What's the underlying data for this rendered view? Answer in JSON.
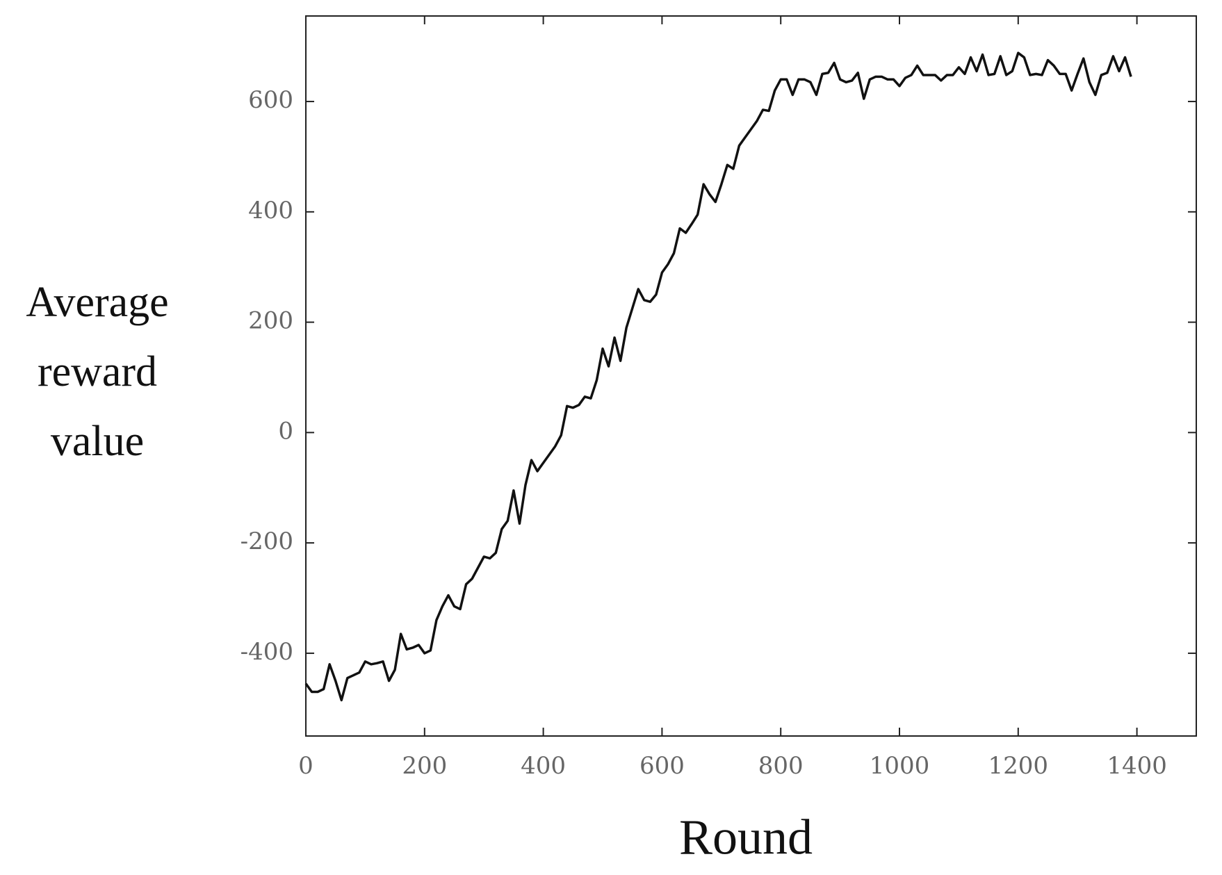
{
  "chart_data": {
    "type": "line",
    "xlabel": "Round",
    "ylabel": "Average reward value",
    "xlim": [
      0,
      1500
    ],
    "xticks": [
      0,
      200,
      400,
      600,
      800,
      1000,
      1200,
      1400
    ],
    "ylim": [
      -550,
      755
    ],
    "yticks": [
      -400,
      -200,
      0,
      200,
      400,
      600
    ],
    "x": [
      0,
      10,
      20,
      30,
      40,
      50,
      60,
      70,
      80,
      90,
      100,
      110,
      120,
      130,
      140,
      150,
      160,
      170,
      180,
      190,
      200,
      210,
      220,
      230,
      240,
      250,
      260,
      270,
      280,
      290,
      300,
      310,
      320,
      330,
      340,
      350,
      360,
      370,
      380,
      390,
      400,
      410,
      420,
      430,
      440,
      450,
      460,
      470,
      480,
      490,
      500,
      510,
      520,
      530,
      540,
      550,
      560,
      570,
      580,
      590,
      600,
      610,
      620,
      630,
      640,
      650,
      660,
      670,
      680,
      690,
      700,
      710,
      720,
      730,
      740,
      750,
      760,
      770,
      780,
      790,
      800,
      810,
      820,
      830,
      840,
      850,
      860,
      870,
      880,
      890,
      900,
      910,
      920,
      930,
      940,
      950,
      960,
      970,
      980,
      990,
      1000,
      1010,
      1020,
      1030,
      1040,
      1050,
      1060,
      1070,
      1080,
      1090,
      1100,
      1110,
      1120,
      1130,
      1140,
      1150,
      1160,
      1170,
      1180,
      1190,
      1200,
      1210,
      1220,
      1230,
      1240,
      1250,
      1260,
      1270,
      1280,
      1290,
      1300,
      1310,
      1320,
      1330,
      1340,
      1350,
      1360,
      1370,
      1380,
      1390
    ],
    "series": [
      {
        "color": "#111111",
        "values": [
          -455,
          -470,
          -470,
          -465,
          -420,
          -450,
          -485,
          -445,
          -440,
          -435,
          -415,
          -420,
          -418,
          -415,
          -450,
          -430,
          -365,
          -393,
          -390,
          -385,
          -400,
          -395,
          -340,
          -315,
          -295,
          -315,
          -320,
          -275,
          -265,
          -245,
          -225,
          -228,
          -218,
          -175,
          -160,
          -105,
          -165,
          -95,
          -50,
          -70,
          -55,
          -40,
          -25,
          -5,
          48,
          45,
          50,
          65,
          62,
          95,
          152,
          120,
          172,
          130,
          190,
          225,
          260,
          240,
          237,
          250,
          290,
          305,
          325,
          370,
          362,
          378,
          395,
          450,
          432,
          418,
          450,
          485,
          478,
          520,
          535,
          550,
          565,
          585,
          583,
          620,
          640,
          640,
          612,
          640,
          640,
          635,
          612,
          650,
          652,
          670,
          640,
          635,
          638,
          652,
          605,
          640,
          645,
          645,
          640,
          640,
          628,
          643,
          648,
          665,
          648,
          648,
          648,
          638,
          648,
          648,
          662,
          650,
          680,
          655,
          685,
          648,
          650,
          682,
          648,
          655,
          688,
          680,
          648,
          650,
          648,
          675,
          665,
          650,
          650,
          620,
          650,
          678,
          635,
          612,
          648,
          652,
          682,
          655,
          680,
          645
        ]
      }
    ]
  }
}
